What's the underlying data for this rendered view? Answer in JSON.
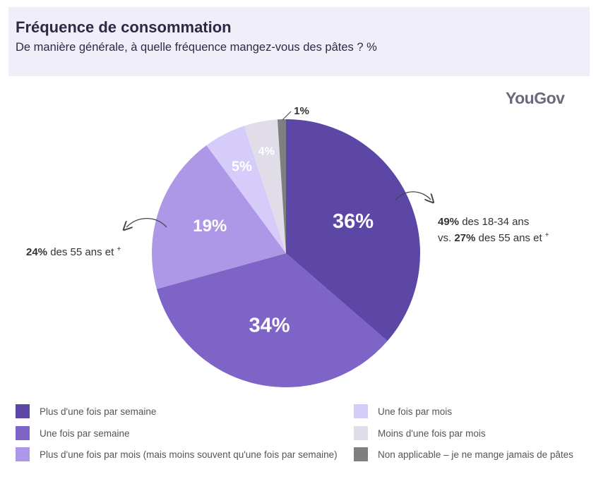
{
  "header": {
    "title": "Fréquence de consommation",
    "subtitle": "De manière générale, à quelle fréquence mangez-vous des pâtes ? %"
  },
  "brand": {
    "logo_text": "YouGov"
  },
  "chart_data": {
    "type": "pie",
    "title": "Fréquence de consommation",
    "subtitle": "De manière générale, à quelle fréquence mangez-vous des pâtes ? %",
    "categories": [
      "Plus d'une fois par semaine",
      "Une fois par semaine",
      "Plus d'une fois par mois (mais moins souvent qu'une fois par semaine)",
      "Une fois par mois",
      "Moins d'une fois par mois",
      "Non applicable – je ne mange jamais de pâtes"
    ],
    "values": [
      36,
      34,
      19,
      5,
      4,
      1
    ],
    "labels": [
      "36%",
      "34%",
      "19%",
      "5%",
      "4%",
      "1%"
    ],
    "colors": [
      "#5d47a6",
      "#7d64c6",
      "#ac98e6",
      "#d6ccfa",
      "#e0dde9",
      "#7f7f7f"
    ],
    "legend_position": "bottom"
  },
  "annotations": {
    "right": {
      "bold1": "49%",
      "text1": " des 18-34 ans",
      "prefix2": "vs. ",
      "bold2": "27%",
      "text2": " des 55 ans et ",
      "plus": "+"
    },
    "left": {
      "bold1": "24%",
      "text1": " des 55 ans et ",
      "plus": "+"
    }
  },
  "legend": [
    {
      "label": "Plus d'une fois par semaine",
      "color": "#5d47a6"
    },
    {
      "label": "Une fois par semaine",
      "color": "#7d64c6"
    },
    {
      "label": "Plus d'une fois par mois (mais moins souvent qu'une fois par semaine)",
      "color": "#ac98e6"
    },
    {
      "label": "Une fois par mois",
      "color": "#d6ccfa"
    },
    {
      "label": "Moins d'une fois par mois",
      "color": "#e0dde9"
    },
    {
      "label": "Non applicable – je ne mange jamais de pâtes",
      "color": "#7f7f7f"
    }
  ]
}
